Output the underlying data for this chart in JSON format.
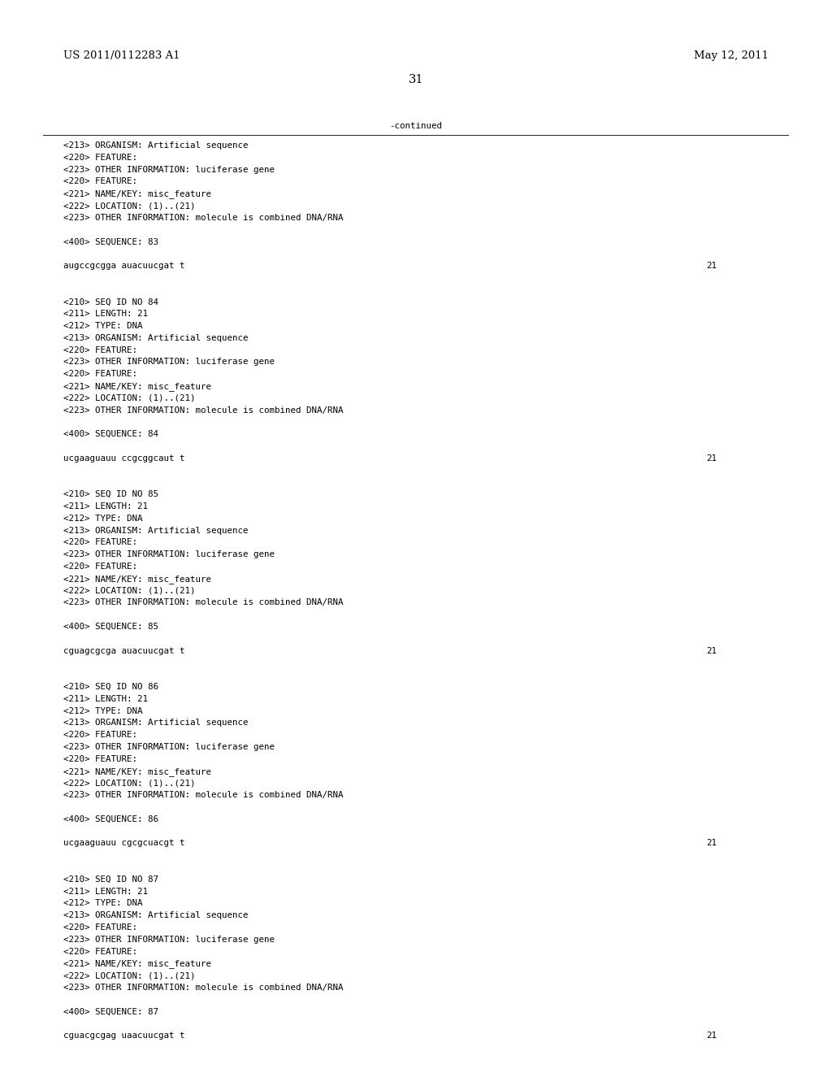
{
  "bg_color": "#ffffff",
  "header_left": "US 2011/0112283 A1",
  "header_right": "May 12, 2011",
  "page_number": "31",
  "continued_text": "-continued",
  "header_font_size": 9.5,
  "page_num_font_size": 10.5,
  "mono_font_size": 7.8,
  "content_lines": [
    {
      "text": "<213> ORGANISM: Artificial sequence",
      "seq_num": null
    },
    {
      "text": "<220> FEATURE:",
      "seq_num": null
    },
    {
      "text": "<223> OTHER INFORMATION: luciferase gene",
      "seq_num": null
    },
    {
      "text": "<220> FEATURE:",
      "seq_num": null
    },
    {
      "text": "<221> NAME/KEY: misc_feature",
      "seq_num": null
    },
    {
      "text": "<222> LOCATION: (1)..(21)",
      "seq_num": null
    },
    {
      "text": "<223> OTHER INFORMATION: molecule is combined DNA/RNA",
      "seq_num": null
    },
    {
      "text": "",
      "seq_num": null
    },
    {
      "text": "<400> SEQUENCE: 83",
      "seq_num": null
    },
    {
      "text": "",
      "seq_num": null
    },
    {
      "text": "augccgcgga auacuucgat t",
      "seq_num": "21"
    },
    {
      "text": "",
      "seq_num": null
    },
    {
      "text": "",
      "seq_num": null
    },
    {
      "text": "<210> SEQ ID NO 84",
      "seq_num": null
    },
    {
      "text": "<211> LENGTH: 21",
      "seq_num": null
    },
    {
      "text": "<212> TYPE: DNA",
      "seq_num": null
    },
    {
      "text": "<213> ORGANISM: Artificial sequence",
      "seq_num": null
    },
    {
      "text": "<220> FEATURE:",
      "seq_num": null
    },
    {
      "text": "<223> OTHER INFORMATION: luciferase gene",
      "seq_num": null
    },
    {
      "text": "<220> FEATURE:",
      "seq_num": null
    },
    {
      "text": "<221> NAME/KEY: misc_feature",
      "seq_num": null
    },
    {
      "text": "<222> LOCATION: (1)..(21)",
      "seq_num": null
    },
    {
      "text": "<223> OTHER INFORMATION: molecule is combined DNA/RNA",
      "seq_num": null
    },
    {
      "text": "",
      "seq_num": null
    },
    {
      "text": "<400> SEQUENCE: 84",
      "seq_num": null
    },
    {
      "text": "",
      "seq_num": null
    },
    {
      "text": "ucgaaguauu ccgcggcaut t",
      "seq_num": "21"
    },
    {
      "text": "",
      "seq_num": null
    },
    {
      "text": "",
      "seq_num": null
    },
    {
      "text": "<210> SEQ ID NO 85",
      "seq_num": null
    },
    {
      "text": "<211> LENGTH: 21",
      "seq_num": null
    },
    {
      "text": "<212> TYPE: DNA",
      "seq_num": null
    },
    {
      "text": "<213> ORGANISM: Artificial sequence",
      "seq_num": null
    },
    {
      "text": "<220> FEATURE:",
      "seq_num": null
    },
    {
      "text": "<223> OTHER INFORMATION: luciferase gene",
      "seq_num": null
    },
    {
      "text": "<220> FEATURE:",
      "seq_num": null
    },
    {
      "text": "<221> NAME/KEY: misc_feature",
      "seq_num": null
    },
    {
      "text": "<222> LOCATION: (1)..(21)",
      "seq_num": null
    },
    {
      "text": "<223> OTHER INFORMATION: molecule is combined DNA/RNA",
      "seq_num": null
    },
    {
      "text": "",
      "seq_num": null
    },
    {
      "text": "<400> SEQUENCE: 85",
      "seq_num": null
    },
    {
      "text": "",
      "seq_num": null
    },
    {
      "text": "cguagcgcga auacuucgat t",
      "seq_num": "21"
    },
    {
      "text": "",
      "seq_num": null
    },
    {
      "text": "",
      "seq_num": null
    },
    {
      "text": "<210> SEQ ID NO 86",
      "seq_num": null
    },
    {
      "text": "<211> LENGTH: 21",
      "seq_num": null
    },
    {
      "text": "<212> TYPE: DNA",
      "seq_num": null
    },
    {
      "text": "<213> ORGANISM: Artificial sequence",
      "seq_num": null
    },
    {
      "text": "<220> FEATURE:",
      "seq_num": null
    },
    {
      "text": "<223> OTHER INFORMATION: luciferase gene",
      "seq_num": null
    },
    {
      "text": "<220> FEATURE:",
      "seq_num": null
    },
    {
      "text": "<221> NAME/KEY: misc_feature",
      "seq_num": null
    },
    {
      "text": "<222> LOCATION: (1)..(21)",
      "seq_num": null
    },
    {
      "text": "<223> OTHER INFORMATION: molecule is combined DNA/RNA",
      "seq_num": null
    },
    {
      "text": "",
      "seq_num": null
    },
    {
      "text": "<400> SEQUENCE: 86",
      "seq_num": null
    },
    {
      "text": "",
      "seq_num": null
    },
    {
      "text": "ucgaaguauu cgcgcuacgt t",
      "seq_num": "21"
    },
    {
      "text": "",
      "seq_num": null
    },
    {
      "text": "",
      "seq_num": null
    },
    {
      "text": "<210> SEQ ID NO 87",
      "seq_num": null
    },
    {
      "text": "<211> LENGTH: 21",
      "seq_num": null
    },
    {
      "text": "<212> TYPE: DNA",
      "seq_num": null
    },
    {
      "text": "<213> ORGANISM: Artificial sequence",
      "seq_num": null
    },
    {
      "text": "<220> FEATURE:",
      "seq_num": null
    },
    {
      "text": "<223> OTHER INFORMATION: luciferase gene",
      "seq_num": null
    },
    {
      "text": "<220> FEATURE:",
      "seq_num": null
    },
    {
      "text": "<221> NAME/KEY: misc_feature",
      "seq_num": null
    },
    {
      "text": "<222> LOCATION: (1)..(21)",
      "seq_num": null
    },
    {
      "text": "<223> OTHER INFORMATION: molecule is combined DNA/RNA",
      "seq_num": null
    },
    {
      "text": "",
      "seq_num": null
    },
    {
      "text": "<400> SEQUENCE: 87",
      "seq_num": null
    },
    {
      "text": "",
      "seq_num": null
    },
    {
      "text": "cguacgcgag uaacuucgat t",
      "seq_num": "21"
    }
  ]
}
